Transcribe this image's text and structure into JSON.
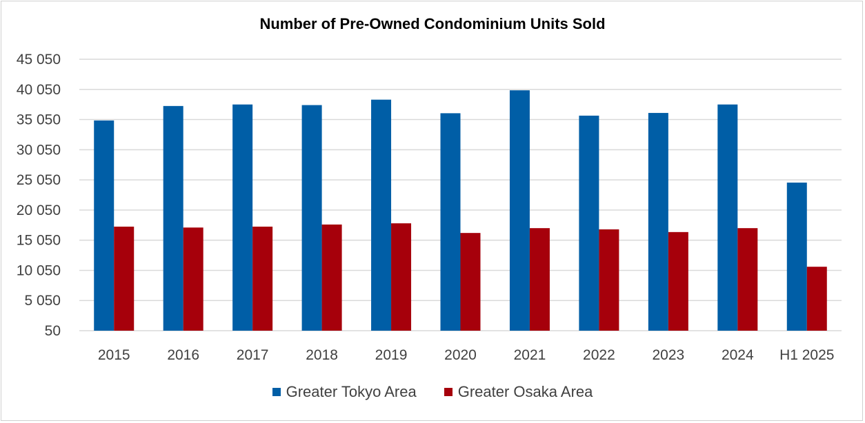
{
  "chart_data": {
    "type": "bar",
    "title": "Number of Pre-Owned Condominium Units Sold",
    "xlabel": "",
    "ylabel": "",
    "categories": [
      "2015",
      "2016",
      "2017",
      "2018",
      "2019",
      "2020",
      "2021",
      "2022",
      "2023",
      "2024",
      "H1 2025"
    ],
    "series": [
      {
        "name": "Greater Tokyo Area",
        "color": "#005EA6",
        "values": [
          34900,
          37300,
          37550,
          37450,
          38350,
          36100,
          39900,
          35700,
          36150,
          37550,
          24600
        ]
      },
      {
        "name": "Greater Osaka Area",
        "color": "#A6000B",
        "values": [
          17300,
          17150,
          17300,
          17650,
          17850,
          16250,
          17050,
          16850,
          16400,
          17050,
          10650
        ]
      }
    ],
    "ylim": [
      50,
      45050
    ],
    "yticks": [
      50,
      5050,
      10050,
      15050,
      20050,
      25050,
      30050,
      35050,
      40050,
      45050
    ],
    "ytick_labels": [
      "50",
      "5 050",
      "10 050",
      "15 050",
      "20 050",
      "25 050",
      "30 050",
      "35 050",
      "40 050",
      "45 050"
    ],
    "grid": true,
    "legend_position": "bottom"
  }
}
